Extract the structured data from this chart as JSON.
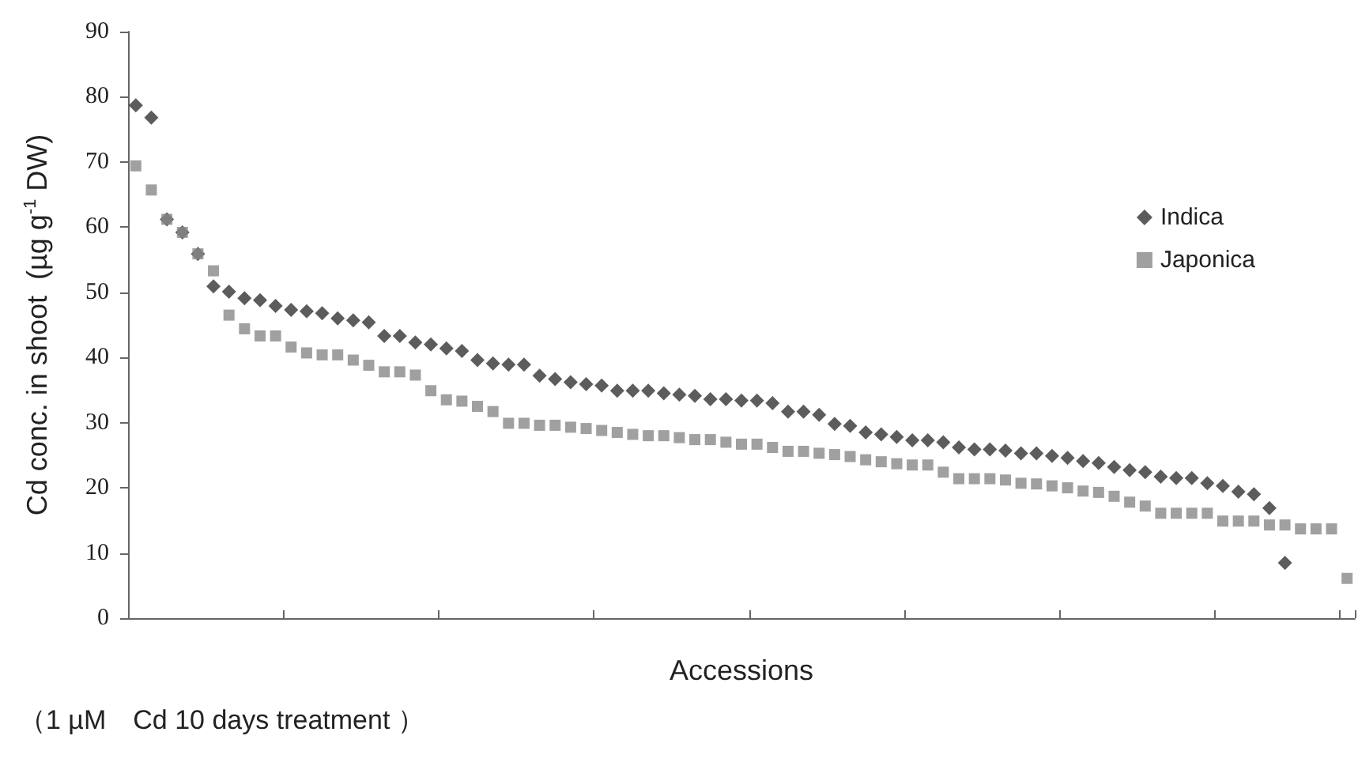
{
  "chart_data": {
    "type": "scatter",
    "xlabel": "Accessions",
    "ylabel": "Cd conc. in shoot  (µg g$^{-1}$ DW)",
    "annotations": [
      "（1 µM　Cd 10 days treatment ）"
    ],
    "categories": [
      null,
      null,
      null,
      null,
      null,
      null,
      null,
      null,
      null,
      null,
      null,
      null,
      null,
      null,
      null,
      null,
      null,
      null,
      null,
      null,
      null,
      null,
      null,
      null,
      null,
      null,
      null,
      null,
      null,
      null,
      null,
      null,
      null,
      null,
      null,
      null,
      null,
      null,
      null,
      null,
      null,
      null,
      null,
      null,
      null,
      null,
      null,
      null,
      null,
      null,
      null,
      null,
      null,
      null,
      null,
      null,
      null,
      null,
      null,
      null,
      null,
      null,
      null,
      null,
      null,
      null,
      null,
      null,
      null,
      null,
      null,
      null,
      null,
      null,
      null,
      null,
      null,
      null,
      null
    ],
    "series": [
      {
        "name": "Indica",
        "color": "#333333",
        "marker": "diamond",
        "values": [
          78.7,
          76.8,
          61.2,
          59.2,
          55.9,
          50.9,
          50.1,
          49.1,
          48.8,
          47.9,
          47.3,
          47.1,
          46.8,
          46.0,
          45.7,
          45.4,
          43.3,
          43.3,
          42.3,
          42.0,
          41.4,
          41.0,
          39.6,
          39.1,
          38.9,
          38.9,
          37.2,
          36.7,
          36.2,
          35.9,
          35.7,
          34.9,
          34.9,
          34.9,
          34.5,
          34.3,
          34.1,
          33.6,
          33.6,
          33.4,
          33.4,
          33.0,
          31.7,
          31.7,
          31.2,
          29.8,
          29.5,
          28.5,
          28.2,
          27.8,
          27.3,
          27.3,
          27.0,
          26.2,
          25.9,
          25.9,
          25.7,
          25.3,
          25.3,
          24.9,
          24.6,
          24.1,
          23.8,
          23.2,
          22.7,
          22.4,
          21.7,
          21.5,
          21.5,
          20.7,
          20.3,
          19.4,
          19.0,
          16.9,
          8.5,
          null,
          null,
          null,
          null
        ]
      },
      {
        "name": "Japonica",
        "color": "#888888",
        "marker": "square",
        "values": [
          69.4,
          65.7,
          61.2,
          59.2,
          55.9,
          53.3,
          46.5,
          44.4,
          43.3,
          43.3,
          41.6,
          40.7,
          40.4,
          40.4,
          39.6,
          38.8,
          37.8,
          37.8,
          37.3,
          34.9,
          33.5,
          33.3,
          32.5,
          31.7,
          29.9,
          29.9,
          29.6,
          29.6,
          29.3,
          29.1,
          28.8,
          28.5,
          28.2,
          28.0,
          28.0,
          27.7,
          27.4,
          27.4,
          27.0,
          26.7,
          26.7,
          26.2,
          25.6,
          25.6,
          25.3,
          25.1,
          24.8,
          24.3,
          24.0,
          23.7,
          23.5,
          23.5,
          22.4,
          21.4,
          21.4,
          21.4,
          21.2,
          20.7,
          20.6,
          20.3,
          20.0,
          19.5,
          19.3,
          18.7,
          17.8,
          17.2,
          16.1,
          16.1,
          16.1,
          16.1,
          14.9,
          14.9,
          14.9,
          14.3,
          14.3,
          13.7,
          13.7,
          13.7,
          6.1
        ]
      }
    ],
    "ylim": [
      0,
      90
    ],
    "yticks": [
      0,
      10,
      20,
      30,
      40,
      50,
      60,
      70,
      80,
      90
    ],
    "tick_labels": "y",
    "grid": false,
    "legend": "top right"
  }
}
